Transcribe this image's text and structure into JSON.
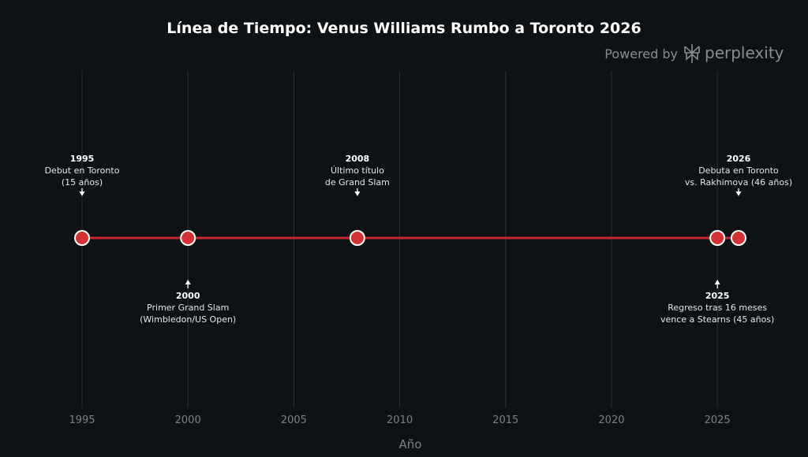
{
  "colors": {
    "background": "#0f1215",
    "grid": "#2c3034",
    "line": "#c8282d",
    "marker_fill": "#d23232",
    "marker_stroke": "#ffffff",
    "text": "#ffffff",
    "muted": "#7d8185"
  },
  "branding": {
    "prefix": "Powered by",
    "name": "perplexity",
    "icon": "perplexity-logo-icon"
  },
  "chart_data": {
    "type": "line",
    "title": "Línea de Tiempo: Venus Williams Rumbo a Toronto 2026",
    "xlabel": "Año",
    "ylabel": "",
    "xlim": [
      1993.8,
      2028.3
    ],
    "x_ticks": [
      1995,
      2000,
      2005,
      2010,
      2015,
      2020,
      2025
    ],
    "grid": true,
    "y_axis_visible": false,
    "series": [
      {
        "x": [
          1995,
          2000,
          2008,
          2025,
          2026
        ],
        "y": [
          0,
          0,
          0,
          0,
          0
        ]
      }
    ],
    "annotations": [
      {
        "x": 1995,
        "side": "above",
        "year": "1995",
        "lines": [
          "Debut en Toronto",
          "(15 años)"
        ]
      },
      {
        "x": 2000,
        "side": "below",
        "year": "2000",
        "lines": [
          "Primer Grand Slam",
          "(Wimbledon/US Open)"
        ]
      },
      {
        "x": 2008,
        "side": "above",
        "year": "2008",
        "lines": [
          "Último título",
          "de Grand Slam"
        ]
      },
      {
        "x": 2025,
        "side": "below",
        "year": "2025",
        "lines": [
          "Regreso tras 16 meses",
          "vence a Stearns (45 años)"
        ]
      },
      {
        "x": 2026,
        "side": "above",
        "year": "2026",
        "lines": [
          "Debuta en Toronto",
          "vs. Rakhimova (46 años)"
        ]
      }
    ]
  }
}
